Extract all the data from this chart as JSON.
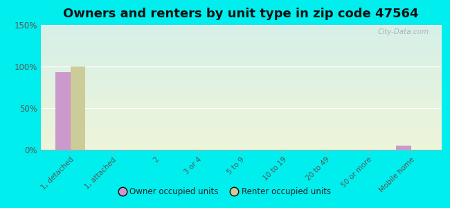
{
  "title": "Owners and renters by unit type in zip code 47564",
  "categories": [
    "1, detached",
    "1, attached",
    "2",
    "3 or 4",
    "5 to 9",
    "10 to 19",
    "20 to 49",
    "50 or more",
    "Mobile home"
  ],
  "owner_values": [
    93,
    0,
    0,
    0,
    0,
    0,
    0,
    0,
    5
  ],
  "renter_values": [
    100,
    0,
    0,
    0,
    0,
    0,
    0,
    0,
    0
  ],
  "owner_color": "#cc99cc",
  "renter_color": "#cccc99",
  "ylim": [
    0,
    150
  ],
  "yticks": [
    0,
    50,
    100,
    150
  ],
  "ytick_labels": [
    "0%",
    "50%",
    "100%",
    "150%"
  ],
  "background_color_top": "#d0e8e8",
  "background_color_bottom": "#e8f0d0",
  "outer_background": "#00eeee",
  "bar_width": 0.35,
  "title_fontsize": 13,
  "legend_labels": [
    "Owner occupied units",
    "Renter occupied units"
  ],
  "watermark": "City-Data.com"
}
